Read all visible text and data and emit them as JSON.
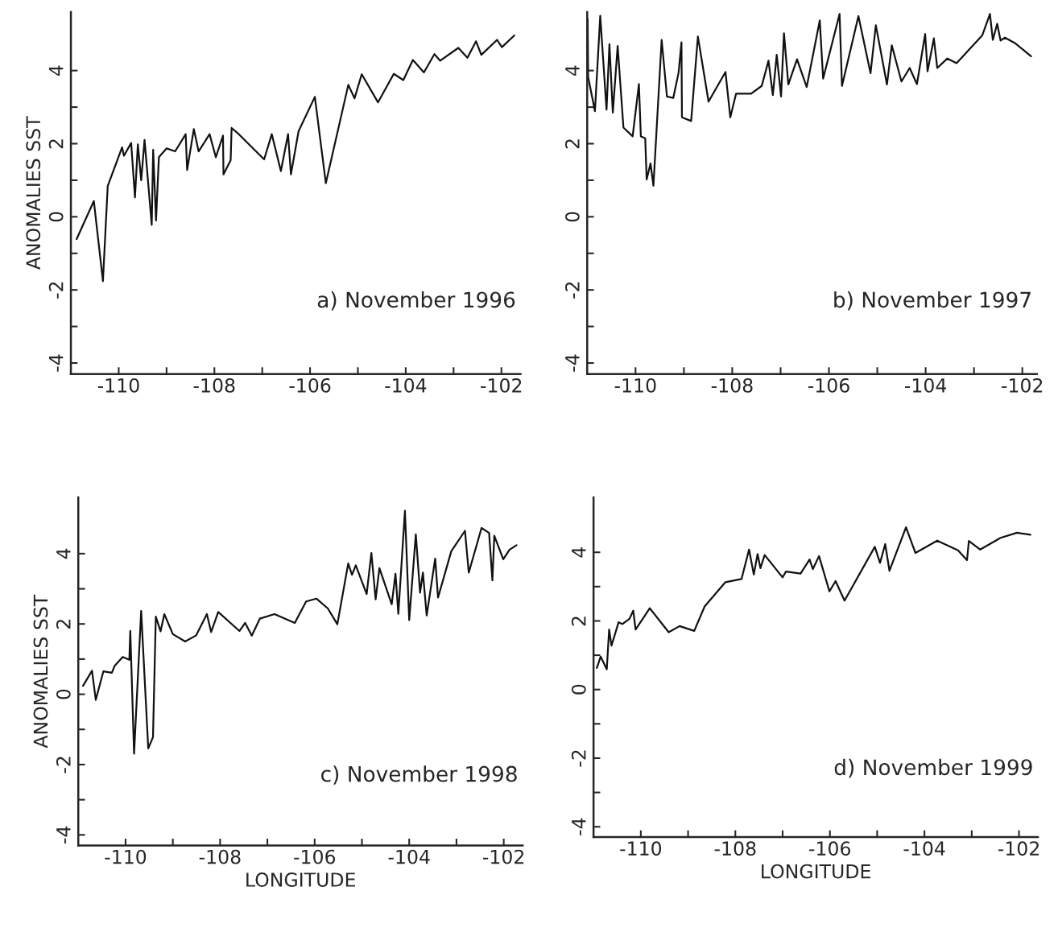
{
  "chart_data": [
    {
      "type": "line",
      "ylabel": "ANOMALIES SST",
      "annotations": [
        "a) November 1996"
      ],
      "xlim": [
        -111.0,
        -101.6
      ],
      "ylim": [
        -4.3,
        5.6
      ],
      "xticks": [
        -110,
        {
          "value": -109,
          "label": null
        },
        -108,
        {
          "value": -107,
          "label": null
        },
        -106,
        {
          "value": -105,
          "label": null
        },
        -104,
        {
          "value": -103,
          "label": null
        },
        -102
      ],
      "yticks": [
        -4,
        {
          "value": -3,
          "label": null
        },
        -2,
        {
          "value": -1,
          "label": null
        },
        0,
        {
          "value": 1,
          "label": null
        },
        2,
        {
          "value": 3,
          "label": null
        },
        4
      ],
      "x": [
        -110.88,
        -110.52,
        -110.33,
        -110.23,
        -109.93,
        -109.89,
        -109.74,
        -109.66,
        -109.6,
        -109.53,
        -109.46,
        -109.31,
        -109.28,
        -109.22,
        -109.16,
        -109.0,
        -108.82,
        -108.6,
        -108.57,
        -108.43,
        -108.33,
        -108.1,
        -107.97,
        -107.82,
        -107.81,
        -107.66,
        -107.64,
        -107.49,
        -106.96,
        -106.8,
        -106.61,
        -106.46,
        -106.4,
        -106.24,
        -105.9,
        -105.67,
        -105.2,
        -105.07,
        -104.92,
        -104.58,
        -104.25,
        -104.05,
        -103.85,
        -103.62,
        -103.4,
        -103.28,
        -102.9,
        -102.71,
        -102.53,
        -102.42,
        -102.09,
        -101.99,
        -101.73
      ],
      "series": [
        {
          "color": "#111111",
          "values": [
            -0.61,
            0.43,
            -1.76,
            0.84,
            1.9,
            1.67,
            2.02,
            0.53,
            1.98,
            1.0,
            2.1,
            -0.22,
            1.83,
            -0.1,
            1.63,
            1.87,
            1.79,
            2.26,
            1.28,
            2.4,
            1.79,
            2.26,
            1.63,
            2.22,
            1.16,
            1.55,
            2.43,
            2.26,
            1.57,
            2.26,
            1.25,
            2.26,
            1.16,
            2.34,
            3.28,
            0.92,
            3.61,
            3.24,
            3.9,
            3.13,
            3.91,
            3.74,
            4.29,
            3.95,
            4.45,
            4.27,
            4.62,
            4.35,
            4.8,
            4.43,
            4.84,
            4.64,
            4.96
          ]
        }
      ]
    },
    {
      "type": "line",
      "annotations": [
        "b) November 1997"
      ],
      "xlim": [
        -111.0,
        -101.7
      ],
      "ylim": [
        -4.3,
        5.6
      ],
      "xticks": [
        -110,
        {
          "value": -109,
          "label": null
        },
        -108,
        {
          "value": -107,
          "label": null
        },
        -106,
        {
          "value": -105,
          "label": null
        },
        -104,
        {
          "value": -103,
          "label": null
        },
        -102
      ],
      "yticks": [
        -4,
        {
          "value": -3,
          "label": null
        },
        -2,
        {
          "value": -1,
          "label": null
        },
        0,
        {
          "value": 1,
          "label": null
        },
        2,
        {
          "value": 3,
          "label": null
        },
        4
      ],
      "x": [
        -110.99,
        -110.98,
        -110.84,
        -110.73,
        -110.6,
        -110.54,
        -110.47,
        -110.37,
        -110.25,
        -110.06,
        -109.93,
        -109.89,
        -109.8,
        -109.77,
        -109.69,
        -109.63,
        -109.46,
        -109.35,
        -109.22,
        -109.11,
        -109.05,
        -109.04,
        -108.85,
        -108.71,
        -108.49,
        -108.14,
        -108.04,
        -107.92,
        -107.61,
        -107.39,
        -107.25,
        -107.16,
        -107.08,
        -106.99,
        -106.93,
        -106.84,
        -106.66,
        -106.46,
        -106.19,
        -106.12,
        -105.78,
        -105.73,
        -105.39,
        -105.14,
        -105.03,
        -104.8,
        -104.7,
        -104.5,
        -104.33,
        -104.18,
        -104.01,
        -103.96,
        -103.83,
        -103.76,
        -103.55,
        -103.36,
        -102.83,
        -102.67,
        -102.61,
        -102.52,
        -102.45,
        -102.36,
        -102.14,
        -101.82
      ],
      "series": [
        {
          "color": "#111111",
          "values": [
            5.41,
            3.82,
            2.89,
            5.5,
            2.93,
            4.72,
            2.85,
            4.67,
            2.44,
            2.2,
            3.63,
            2.2,
            2.15,
            1.02,
            1.46,
            0.85,
            4.84,
            3.29,
            3.25,
            3.94,
            4.77,
            2.72,
            2.62,
            4.93,
            3.15,
            3.96,
            2.72,
            3.37,
            3.37,
            3.58,
            4.27,
            3.33,
            4.43,
            3.29,
            5.02,
            3.62,
            4.31,
            3.55,
            5.37,
            3.78,
            5.55,
            3.58,
            5.49,
            3.93,
            5.24,
            3.62,
            4.69,
            3.7,
            4.07,
            3.63,
            5.0,
            3.98,
            4.88,
            4.07,
            4.33,
            4.2,
            4.96,
            5.55,
            4.84,
            5.28,
            4.82,
            4.9,
            4.74,
            4.39
          ]
        }
      ]
    },
    {
      "type": "line",
      "ylabel": "ANOMALIES SST",
      "xlabel": "LONGITUDE",
      "annotations": [
        "c) November 1998"
      ],
      "xlim": [
        -111.0,
        -101.6
      ],
      "ylim": [
        -4.3,
        5.6
      ],
      "xticks": [
        -110,
        {
          "value": -109,
          "label": null
        },
        -108,
        {
          "value": -107,
          "label": null
        },
        -106,
        {
          "value": -105,
          "label": null
        },
        -104,
        {
          "value": -103,
          "label": null
        },
        -102
      ],
      "yticks": [
        -4,
        {
          "value": -3,
          "label": null
        },
        -2,
        {
          "value": -1,
          "label": null
        },
        0,
        {
          "value": 1,
          "label": null
        },
        2,
        {
          "value": 3,
          "label": null
        },
        4
      ],
      "x": [
        -110.9,
        -110.71,
        -110.63,
        -110.47,
        -110.29,
        -110.23,
        -110.06,
        -109.92,
        -109.9,
        -109.82,
        -109.67,
        -109.52,
        -109.42,
        -109.36,
        -109.26,
        -109.18,
        -109.0,
        -108.74,
        -108.51,
        -108.28,
        -108.19,
        -108.04,
        -107.59,
        -107.47,
        -107.33,
        -107.16,
        -106.85,
        -106.42,
        -106.18,
        -105.96,
        -105.72,
        -105.52,
        -105.29,
        -105.21,
        -105.13,
        -104.9,
        -104.8,
        -104.71,
        -104.63,
        -104.37,
        -104.29,
        -104.23,
        -104.09,
        -104.0,
        -103.86,
        -103.77,
        -103.71,
        -103.63,
        -103.45,
        -103.39,
        -103.11,
        -102.82,
        -102.74,
        -102.47,
        -102.31,
        -102.24,
        -102.2,
        -102.01,
        -101.88,
        -101.73
      ],
      "series": [
        {
          "color": "#111111",
          "values": [
            0.24,
            0.67,
            -0.16,
            0.65,
            0.61,
            0.81,
            1.06,
            0.98,
            1.8,
            -1.69,
            2.37,
            -1.54,
            -1.22,
            2.21,
            1.79,
            2.28,
            1.71,
            1.5,
            1.67,
            2.28,
            1.77,
            2.34,
            1.8,
            2.03,
            1.67,
            2.15,
            2.28,
            2.03,
            2.64,
            2.72,
            2.44,
            1.99,
            3.72,
            3.4,
            3.67,
            2.85,
            4.02,
            2.7,
            3.59,
            2.56,
            3.43,
            2.29,
            5.22,
            2.11,
            4.55,
            2.89,
            3.46,
            2.24,
            3.86,
            2.75,
            4.07,
            4.65,
            3.46,
            4.73,
            4.59,
            3.24,
            4.51,
            3.84,
            4.11,
            4.24
          ]
        }
      ]
    },
    {
      "type": "line",
      "xlabel": "LONGITUDE",
      "annotations": [
        "d) November 1999"
      ],
      "xlim": [
        -111.0,
        -101.6
      ],
      "ylim": [
        -4.3,
        5.6
      ],
      "xticks": [
        -110,
        {
          "value": -109,
          "label": null
        },
        -108,
        {
          "value": -107,
          "label": null
        },
        -106,
        {
          "value": -105,
          "label": null
        },
        -104,
        {
          "value": -103,
          "label": null
        },
        -102
      ],
      "yticks": [
        -4,
        {
          "value": -3,
          "label": null
        },
        -2,
        {
          "value": -1,
          "label": null
        },
        0,
        {
          "value": 1,
          "label": null
        },
        2,
        {
          "value": 3,
          "label": null
        },
        4
      ],
      "x": [
        -110.93,
        -110.85,
        -110.72,
        -110.67,
        -110.62,
        -110.47,
        -110.39,
        -110.24,
        -110.16,
        -110.11,
        -109.81,
        -109.41,
        -109.18,
        -108.87,
        -108.65,
        -108.21,
        -107.87,
        -107.71,
        -107.61,
        -107.53,
        -107.47,
        -107.38,
        -107.0,
        -106.93,
        -106.62,
        -106.43,
        -106.36,
        -106.23,
        -106.01,
        -105.88,
        -105.69,
        -105.05,
        -104.94,
        -104.83,
        -104.74,
        -104.39,
        -104.19,
        -103.73,
        -103.29,
        -103.1,
        -103.06,
        -102.82,
        -102.39,
        -102.04,
        -101.76
      ],
      "series": [
        {
          "color": "#111111",
          "values": [
            0.63,
            0.96,
            0.59,
            1.75,
            1.28,
            1.96,
            1.91,
            2.06,
            2.3,
            1.75,
            2.37,
            1.67,
            1.85,
            1.71,
            2.42,
            3.13,
            3.22,
            4.08,
            3.35,
            3.95,
            3.54,
            3.92,
            3.27,
            3.44,
            3.38,
            3.79,
            3.51,
            3.89,
            2.86,
            3.16,
            2.59,
            4.16,
            3.69,
            4.24,
            3.46,
            4.73,
            3.98,
            4.34,
            4.06,
            3.77,
            4.33,
            4.08,
            4.42,
            4.57,
            4.51
          ]
        }
      ]
    }
  ]
}
